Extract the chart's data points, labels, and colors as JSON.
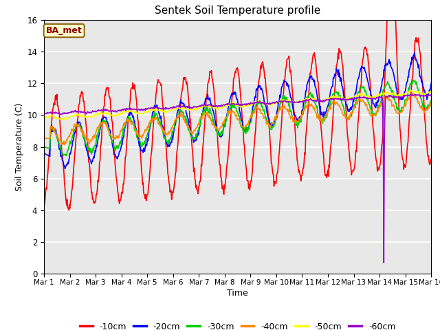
{
  "title": "Sentek Soil Temperature profile",
  "xlabel": "Time",
  "ylabel": "Soil Temperature (C)",
  "ylim": [
    0,
    16
  ],
  "yticks": [
    0,
    2,
    4,
    6,
    8,
    10,
    12,
    14,
    16
  ],
  "xtick_labels": [
    "Mar 1",
    "Mar 2",
    "Mar 3",
    "Mar 4",
    "Mar 5",
    "Mar 6",
    "Mar 7",
    "Mar 8",
    "Mar 9",
    "Mar 10",
    "Mar 11",
    "Mar 12",
    "Mar 13",
    "Mar 14",
    "Mar 15",
    "Mar 16"
  ],
  "annotation_text": "BA_met",
  "legend_labels": [
    "-10cm",
    "-20cm",
    "-30cm",
    "-40cm",
    "-50cm",
    "-60cm"
  ],
  "colors": [
    "#ff0000",
    "#0000ff",
    "#00cc00",
    "#ff8800",
    "#ffff00",
    "#9900cc"
  ],
  "background_color": "#e8e8e8",
  "title_fontsize": 11,
  "axis_fontsize": 9,
  "legend_fontsize": 9,
  "figwidth": 6.4,
  "figheight": 4.8,
  "dpi": 100
}
